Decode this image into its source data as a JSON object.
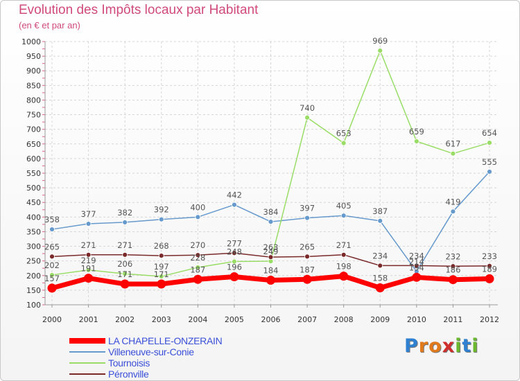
{
  "title": "Evolution des Impôts locaux par Habitant",
  "subtitle": "(en € et par an)",
  "logo": {
    "text": "Proxiti",
    "letters": [
      "P",
      "r",
      "o",
      "x",
      "i",
      "t",
      "i"
    ],
    "colors": [
      "#2f80d0",
      "#e07a1a",
      "#e07a1a",
      "#d02d2d",
      "#6bb82e",
      "#2f80d0",
      "#6bb82e"
    ]
  },
  "chart_data": {
    "type": "line",
    "x": [
      "2000",
      "2001",
      "2002",
      "2003",
      "2004",
      "2005",
      "2006",
      "2007",
      "2008",
      "2009",
      "2010",
      "2011",
      "2012"
    ],
    "ylim": [
      100,
      1000
    ],
    "yticks": [
      100,
      150,
      200,
      250,
      300,
      350,
      400,
      450,
      500,
      550,
      600,
      650,
      700,
      750,
      800,
      850,
      900,
      950,
      1000
    ],
    "grid": true,
    "legend_position": "bottom-left",
    "series": [
      {
        "name": "LA CHAPELLE-ONZERAIN",
        "color": "#ff0000",
        "values": [
          157,
          191,
          171,
          171,
          187,
          196,
          184,
          187,
          198,
          158,
          194,
          186,
          189
        ]
      },
      {
        "name": "Villeneuve-sur-Conie",
        "color": "#6699cc",
        "values": [
          358,
          377,
          382,
          392,
          400,
          442,
          384,
          397,
          405,
          387,
          214,
          419,
          555
        ]
      },
      {
        "name": "Tournoisis",
        "color": "#99dd66",
        "values": [
          202,
          219,
          206,
          197,
          228,
          248,
          249,
          740,
          653,
          969,
          659,
          617,
          654
        ]
      },
      {
        "name": "Péronville",
        "color": "#7a2a2a",
        "values": [
          265,
          271,
          271,
          268,
          270,
          277,
          263,
          265,
          271,
          234,
          234,
          232,
          233
        ]
      }
    ]
  }
}
